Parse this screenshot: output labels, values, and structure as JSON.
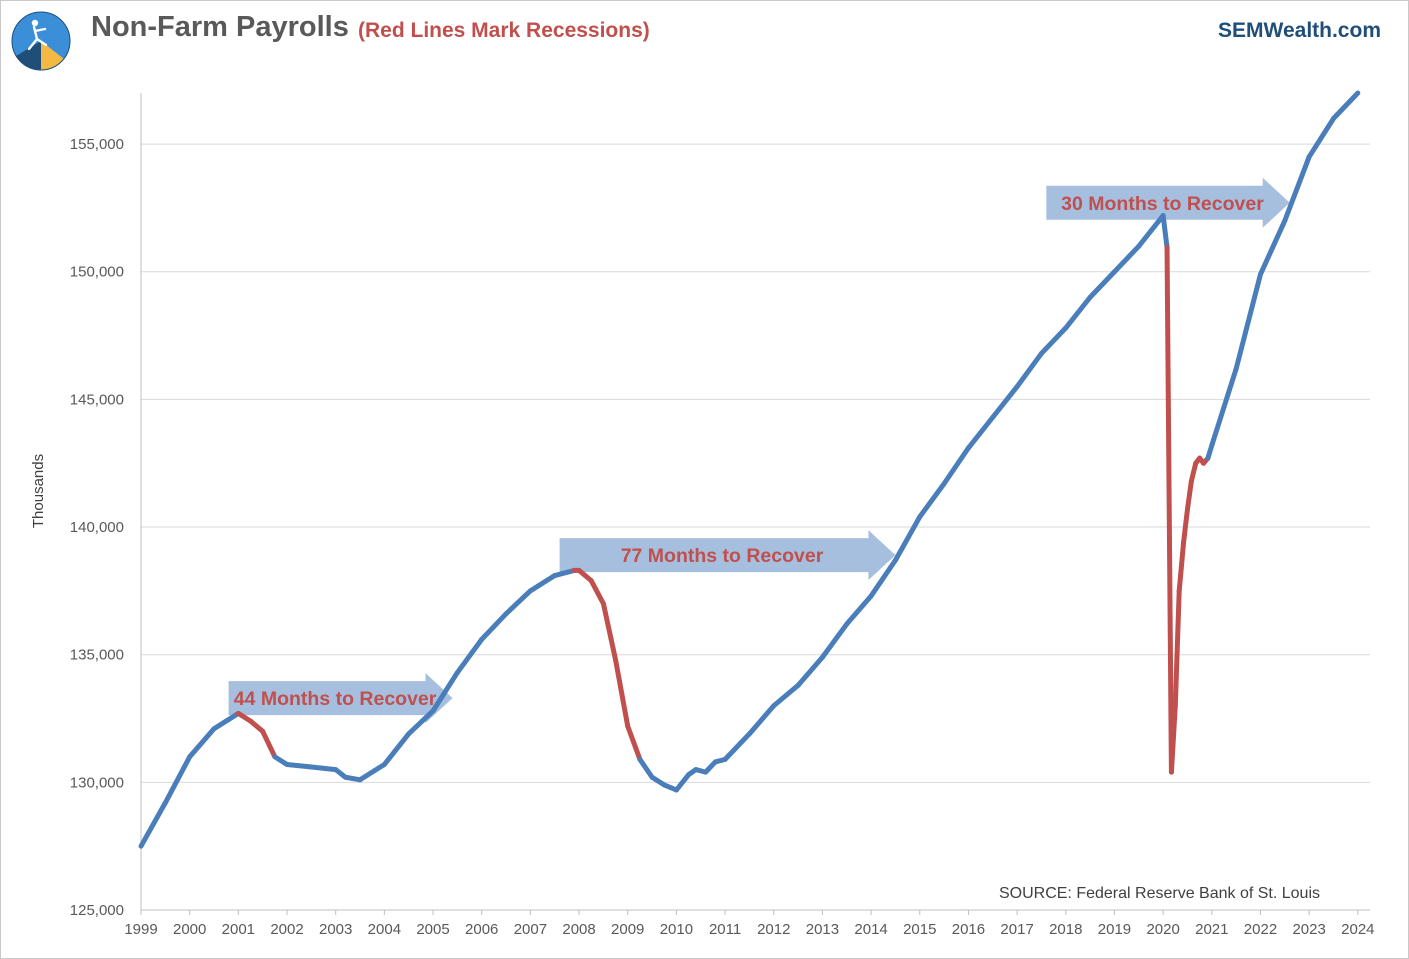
{
  "header": {
    "title": "Non-Farm Payrolls",
    "subtitle": "(Red Lines Mark Recessions)",
    "brand": "SEMWealth.com"
  },
  "colors": {
    "series": "#4a7ebb",
    "recession": "#c0504d",
    "arrow": "#a7bfdf",
    "grid": "#d9d9d9"
  },
  "chart_data": {
    "type": "line",
    "ylabel": "Thousands",
    "xlabel": "",
    "ylim": [
      125000,
      157000
    ],
    "xlim": [
      1999.0,
      2024.25
    ],
    "yticks": [
      125000,
      130000,
      135000,
      140000,
      145000,
      150000,
      155000
    ],
    "ytick_labels": [
      "125,000",
      "130,000",
      "135,000",
      "140,000",
      "145,000",
      "150,000",
      "155,000"
    ],
    "xticks": [
      1999,
      2000,
      2001,
      2002,
      2003,
      2004,
      2005,
      2006,
      2007,
      2008,
      2009,
      2010,
      2011,
      2012,
      2013,
      2014,
      2015,
      2016,
      2017,
      2018,
      2019,
      2020,
      2021,
      2022,
      2023,
      2024
    ],
    "xtick_labels": [
      "1999",
      "2000",
      "2001",
      "2002",
      "2003",
      "2004",
      "2005",
      "2006",
      "2007",
      "2008",
      "2009",
      "2010",
      "2011",
      "2012",
      "2013",
      "2014",
      "2015",
      "2016",
      "2017",
      "2018",
      "2019",
      "2020",
      "2021",
      "2022",
      "2023",
      "2024"
    ],
    "grid": "horizontal",
    "series": [
      {
        "x": [
          1999.0,
          1999.5,
          2000.0,
          2000.5,
          2001.0,
          2001.25,
          2001.5,
          2001.75,
          2002.0,
          2002.5,
          2003.0,
          2003.2,
          2003.5,
          2004.0,
          2004.5,
          2005.0,
          2005.5,
          2006.0,
          2006.5,
          2007.0,
          2007.5,
          2007.9,
          2008.0,
          2008.25,
          2008.5,
          2008.75,
          2009.0,
          2009.25,
          2009.5,
          2009.75,
          2010.0,
          2010.25,
          2010.4,
          2010.6,
          2010.8,
          2011.0,
          2011.5,
          2012.0,
          2012.5,
          2013.0,
          2013.5,
          2014.0,
          2014.5,
          2015.0,
          2015.5,
          2016.0,
          2016.5,
          2017.0,
          2017.5,
          2018.0,
          2018.5,
          2019.0,
          2019.5,
          2020.0,
          2020.08,
          2020.17,
          2020.25,
          2020.33,
          2020.42,
          2020.5,
          2020.58,
          2020.67,
          2020.75,
          2020.83,
          2020.92,
          2021.0,
          2021.5,
          2022.0,
          2022.5,
          2023.0,
          2023.5,
          2024.0
        ],
        "values": [
          127500,
          129200,
          131000,
          132100,
          132700,
          132400,
          132000,
          131000,
          130700,
          130600,
          130500,
          130200,
          130100,
          130700,
          131900,
          132800,
          134300,
          135600,
          136600,
          137500,
          138100,
          138300,
          138300,
          137900,
          137000,
          134800,
          132200,
          130900,
          130200,
          129900,
          129700,
          130300,
          130500,
          130400,
          130800,
          130900,
          131900,
          133000,
          133800,
          134900,
          136200,
          137300,
          138700,
          140400,
          141700,
          143100,
          144300,
          145500,
          146800,
          147800,
          149000,
          150000,
          151000,
          152200,
          150950,
          130400,
          133000,
          137500,
          139400,
          140700,
          141800,
          142500,
          142700,
          142500,
          142700,
          143200,
          146200,
          149900,
          152000,
          154500,
          156000,
          157000
        ],
        "segment_status": [
          "expansion",
          "expansion",
          "expansion",
          "expansion",
          "recession",
          "recession",
          "recession",
          "expansion",
          "expansion",
          "expansion",
          "expansion",
          "expansion",
          "expansion",
          "expansion",
          "expansion",
          "expansion",
          "expansion",
          "expansion",
          "expansion",
          "expansion",
          "expansion",
          "recession",
          "recession",
          "recession",
          "recession",
          "recession",
          "recession",
          "expansion",
          "expansion",
          "expansion",
          "expansion",
          "expansion",
          "expansion",
          "expansion",
          "expansion",
          "expansion",
          "expansion",
          "expansion",
          "expansion",
          "expansion",
          "expansion",
          "expansion",
          "expansion",
          "expansion",
          "expansion",
          "expansion",
          "expansion",
          "expansion",
          "expansion",
          "expansion",
          "expansion",
          "expansion",
          "expansion",
          "expansion",
          "recession",
          "recession",
          "recession",
          "recession",
          "recession",
          "recession",
          "recession",
          "recession",
          "recession",
          "recession",
          "expansion",
          "expansion",
          "expansion",
          "expansion",
          "expansion",
          "expansion",
          "expansion"
        ]
      }
    ],
    "annotations": [
      {
        "text": "44 Months to Recover",
        "x_start": 2000.8,
        "x_end": 2005.4,
        "y": 133300
      },
      {
        "text": "77 Months to Recover",
        "x_start": 2007.6,
        "x_end": 2014.5,
        "y": 138900
      },
      {
        "text": "30 Months to Recover",
        "x_start": 2017.6,
        "x_end": 2022.6,
        "y": 152700
      }
    ],
    "source": "SOURCE: Federal Reserve Bank of St. Louis"
  }
}
